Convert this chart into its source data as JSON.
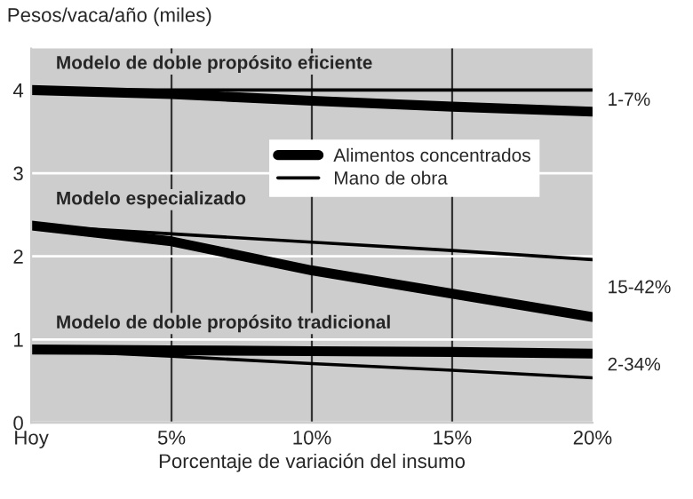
{
  "chart_data": {
    "type": "line",
    "ylabel": "Pesos/vaca/año (miles)",
    "xlabel": "Porcentaje de variación del insumo",
    "categories": [
      "Hoy",
      "5%",
      "10%",
      "15%",
      "20%"
    ],
    "series": [
      {
        "name": "Alimentos concentrados",
        "color": "#000000",
        "values": [
          4.0,
          3.95,
          3.87,
          3.8,
          3.74
        ]
      },
      {
        "name": "Mano de obra",
        "color": "#000000",
        "values": [
          4.0,
          4.0,
          4.0,
          4.0,
          4.0
        ]
      },
      {
        "color": "#000000",
        "values": [
          2.37,
          2.18,
          1.83,
          1.55,
          1.27
        ]
      },
      {
        "color": "#000000",
        "values": [
          2.37,
          2.27,
          2.17,
          2.07,
          1.96
        ]
      },
      {
        "color": "#000000",
        "values": [
          0.88,
          0.87,
          0.86,
          0.85,
          0.83
        ]
      },
      {
        "color": "#000000",
        "values": [
          0.88,
          0.8,
          0.71,
          0.63,
          0.54
        ]
      }
    ],
    "ylim": [
      0,
      4.5
    ],
    "yticks": [
      0,
      1,
      2,
      3,
      4
    ],
    "grid": true,
    "legend": "right",
    "marker": "none",
    "line_style": "solid",
    "annotations": [
      {
        "text": "Modelo de doble propósito eficiente",
        "x": "Hoy",
        "y": 4.0
      },
      {
        "text": "Modelo especializado",
        "x": "Hoy",
        "y": 2.37
      },
      {
        "text": "Modelo de doble propósito tradicional",
        "x": "Hoy",
        "y": 0.88
      },
      "1-7%",
      "15-42%",
      "2-34%"
    ]
  }
}
